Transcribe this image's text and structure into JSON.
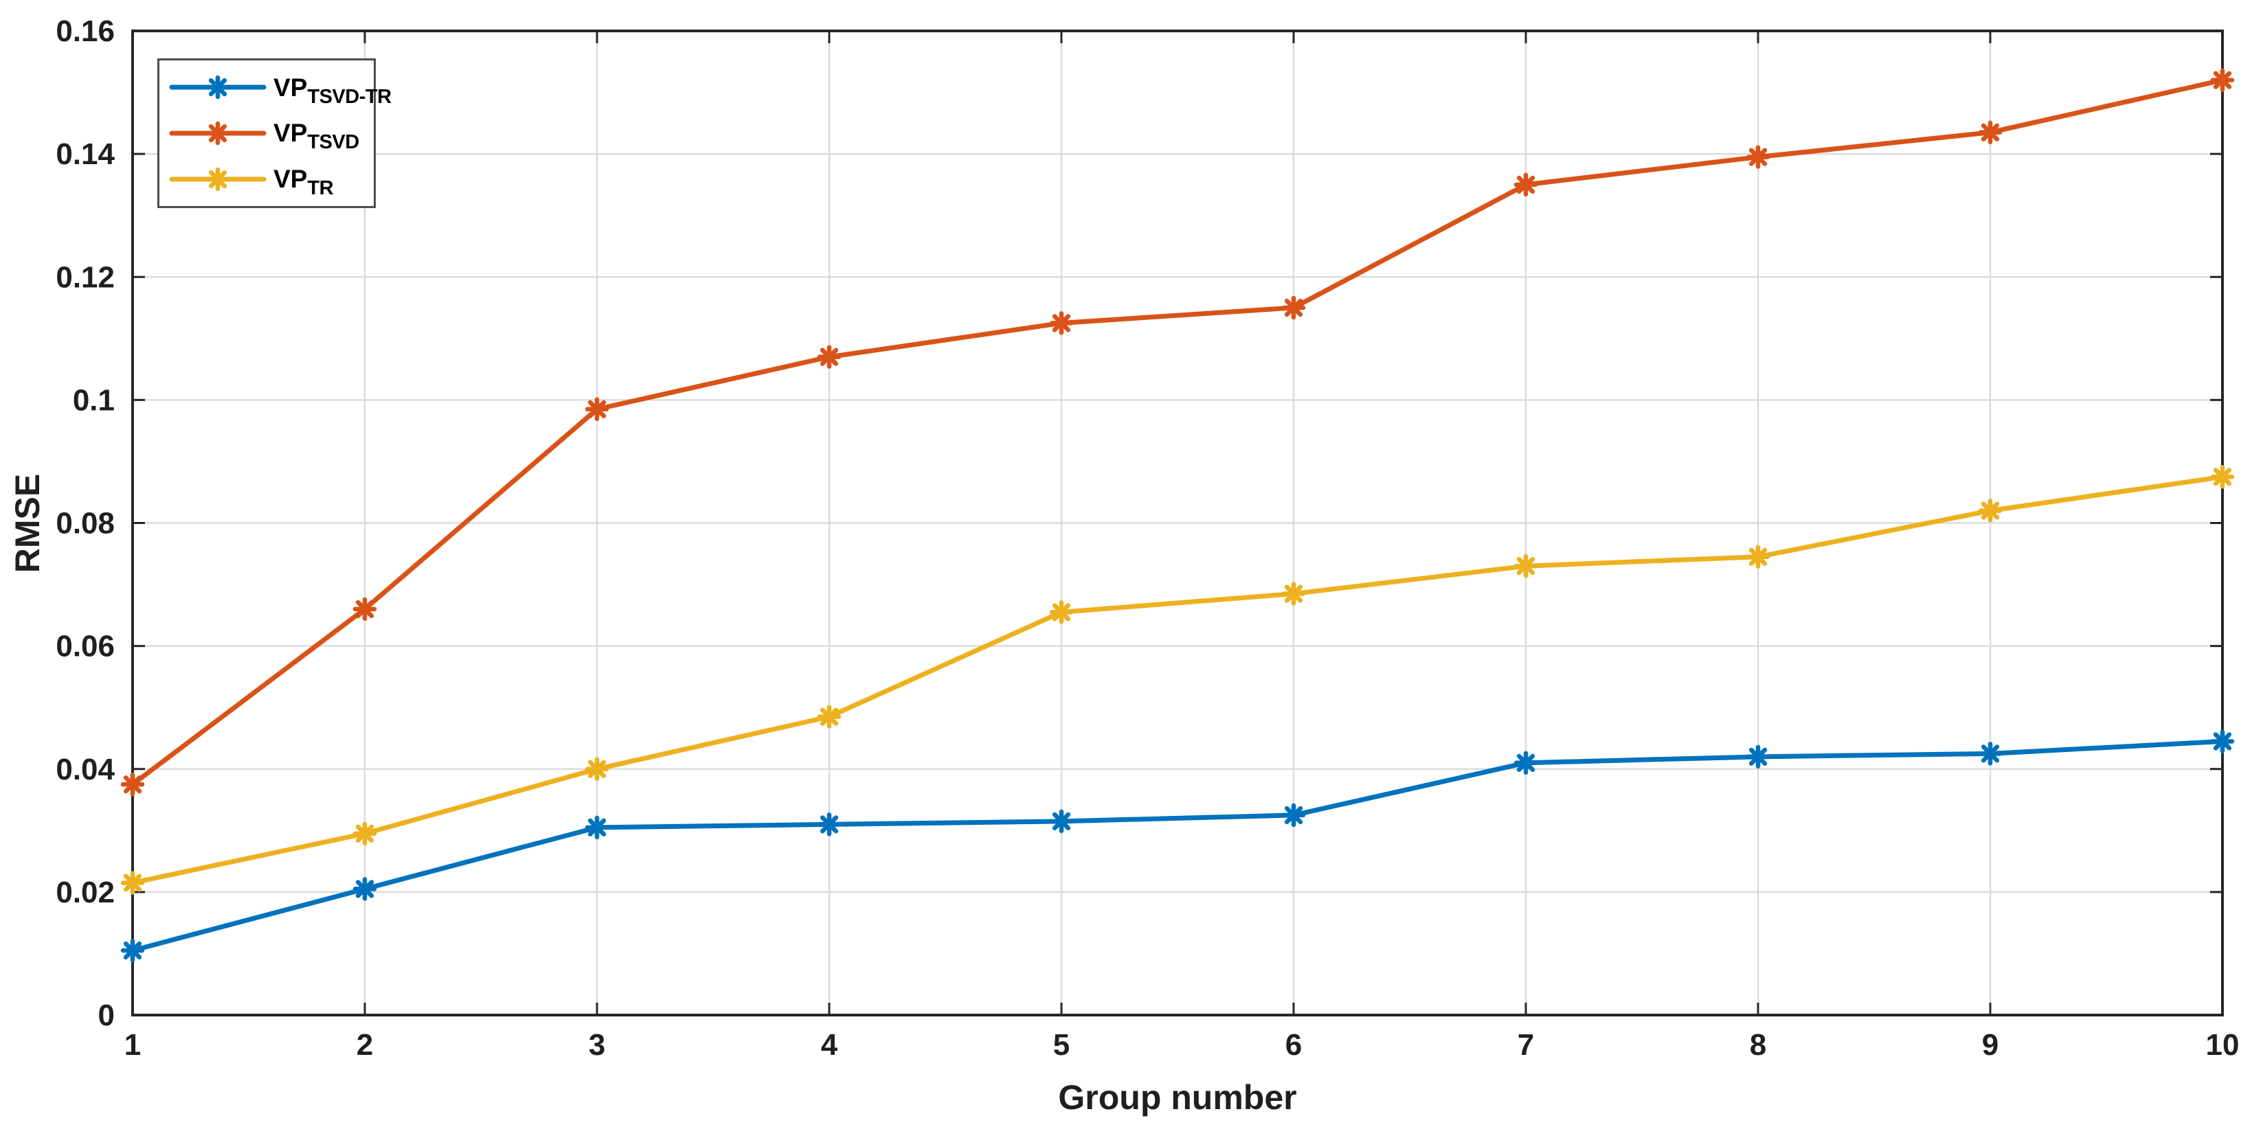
{
  "chart_data": {
    "type": "line",
    "title": "",
    "xlabel": "Group number",
    "ylabel": "RMSE",
    "xlim": [
      1,
      10
    ],
    "ylim": [
      0,
      0.16
    ],
    "grid": true,
    "legend_position": "top-left",
    "x": [
      1,
      2,
      3,
      4,
      5,
      6,
      7,
      8,
      9,
      10
    ],
    "xtick_labels": [
      "1",
      "2",
      "3",
      "4",
      "5",
      "6",
      "7",
      "8",
      "9",
      "10"
    ],
    "yticks": [
      0,
      0.02,
      0.04,
      0.06,
      0.08,
      0.1,
      0.12,
      0.14,
      0.16
    ],
    "ytick_labels": [
      "0",
      "0.02",
      "0.04",
      "0.06",
      "0.08",
      "0.1",
      "0.12",
      "0.14",
      "0.16"
    ],
    "series": [
      {
        "name": "VP_TSVD-TR",
        "label_base": "VP",
        "label_sub": "TSVD-TR",
        "color": "#0072BD",
        "marker": "asterisk",
        "values": [
          0.0105,
          0.0205,
          0.0305,
          0.031,
          0.0315,
          0.0325,
          0.041,
          0.042,
          0.0425,
          0.0445
        ]
      },
      {
        "name": "VP_TSVD",
        "label_base": "VP",
        "label_sub": "TSVD",
        "color": "#D95319",
        "marker": "asterisk",
        "values": [
          0.0375,
          0.066,
          0.0985,
          0.107,
          0.1125,
          0.115,
          0.135,
          0.1395,
          0.1435,
          0.152
        ]
      },
      {
        "name": "VP_TR",
        "label_base": "VP",
        "label_sub": "TR",
        "color": "#EDB120",
        "marker": "asterisk",
        "values": [
          0.0215,
          0.0295,
          0.04,
          0.0485,
          0.0655,
          0.0685,
          0.073,
          0.0745,
          0.082,
          0.0875
        ]
      }
    ],
    "axis_color": "#262626",
    "grid_color": "#dcdcdc",
    "tick_label_color": "#1f1f1f"
  }
}
